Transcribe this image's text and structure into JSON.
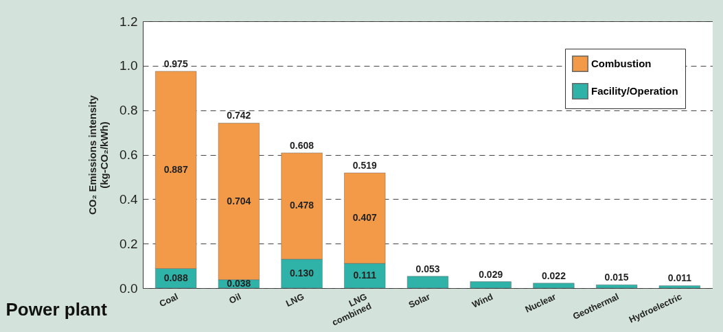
{
  "chart_data": {
    "type": "bar",
    "stacked": true,
    "ylabel": "CO₂ Emissions intensity\n(kg-CO₂/kWh)",
    "xlabel": "Power plant",
    "categories": [
      "Coal",
      "Oil",
      "LNG",
      "LNG\ncombined",
      "Solar",
      "Wind",
      "Nuclear",
      "Geothermal",
      "Hydroelectric"
    ],
    "series": [
      {
        "name": "Facility/Operation",
        "color": "#2fb3a9",
        "values": [
          0.088,
          0.038,
          0.13,
          0.111,
          0.053,
          0.029,
          0.022,
          0.015,
          0.011
        ],
        "value_labels": [
          "0.088",
          "0.038",
          "0.130",
          "0.111",
          null,
          null,
          null,
          null,
          null
        ]
      },
      {
        "name": "Combustion",
        "color": "#f29a48",
        "values": [
          0.887,
          0.704,
          0.478,
          0.407,
          null,
          null,
          null,
          null,
          null
        ],
        "value_labels": [
          "0.887",
          "0.704",
          "0.478",
          "0.407",
          null,
          null,
          null,
          null,
          null
        ]
      }
    ],
    "totals": [
      "0.975",
      "0.742",
      "0.608",
      "0.519",
      "0.053",
      "0.029",
      "0.022",
      "0.015",
      "0.011"
    ],
    "ylim": [
      0,
      1.2
    ],
    "yticks": [
      {
        "value": 0,
        "label": "0.0"
      },
      {
        "value": 0.2,
        "label": "0.2"
      },
      {
        "value": 0.4,
        "label": "0.4"
      },
      {
        "value": 0.6,
        "label": "0.6"
      },
      {
        "value": 0.8,
        "label": "0.8"
      },
      {
        "value": 1.0,
        "label": "1.0"
      },
      {
        "value": 1.2,
        "label": "1.2"
      }
    ],
    "grid": "y",
    "legend": "top right"
  }
}
